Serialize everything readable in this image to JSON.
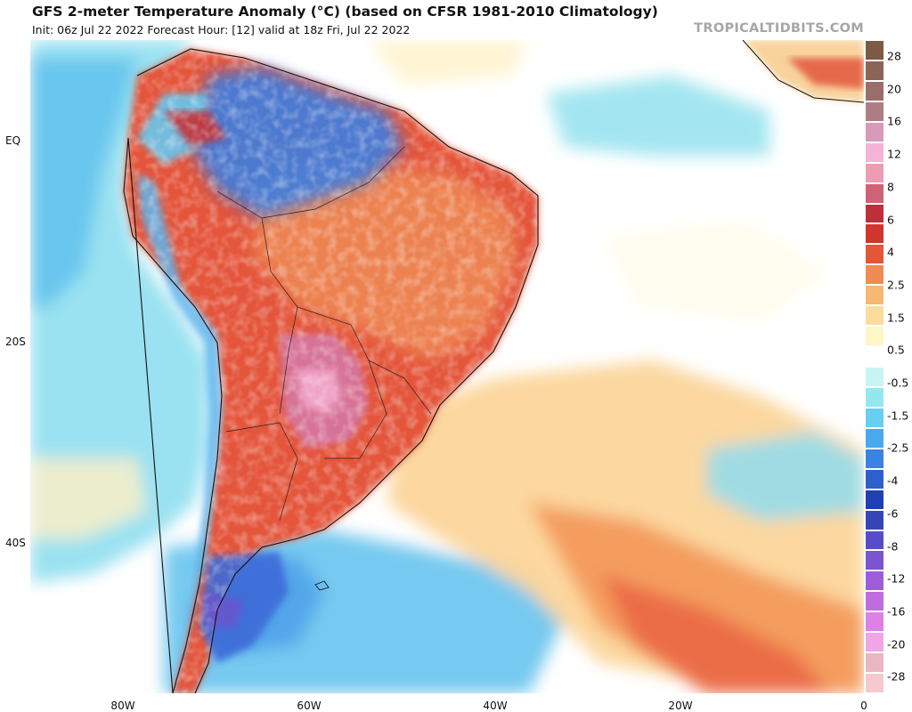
{
  "header": {
    "title": "GFS 2-meter Temperature Anomaly (°C) (based on CFSR 1981-2010 Climatology)",
    "subtitle": "Init: 06z Jul 22 2022   Forecast Hour: [12]   valid at 18z Fri, Jul 22 2022",
    "site": "TROPICALTIDBITS.COM"
  },
  "map": {
    "lat_labels": [
      "EQ",
      "20S",
      "40S"
    ],
    "lon_labels": [
      "80W",
      "60W",
      "40W",
      "20W",
      "0"
    ]
  },
  "colorbar": {
    "labels": [
      "28",
      "20",
      "16",
      "12",
      "8",
      "6",
      "4",
      "2.5",
      "1.5",
      "0.5",
      "-0.5",
      "-1.5",
      "-2.5",
      "-4",
      "-6",
      "-8",
      "-12",
      "-16",
      "-20",
      "-28"
    ],
    "colors": [
      "#7d5a45",
      "#8b6456",
      "#9a6d6a",
      "#b07d86",
      "#d79ab8",
      "#f5b3d6",
      "#ec9db4",
      "#cf6275",
      "#bf2f3a",
      "#d0362d",
      "#e55538",
      "#f08b54",
      "#f7b874",
      "#fcdc9c",
      "#fff6c6",
      "#ffffff",
      "#c8f5f3",
      "#93e8ef",
      "#67cff0",
      "#48a9ef",
      "#3a83e1",
      "#2f5fcc",
      "#1f3fb2",
      "#3645b5",
      "#5a4cc9",
      "#7b54cf",
      "#9e5dd8",
      "#c06ce0",
      "#de80e6",
      "#f0a6e6",
      "#e9b6c3",
      "#f5c9cd"
    ]
  }
}
